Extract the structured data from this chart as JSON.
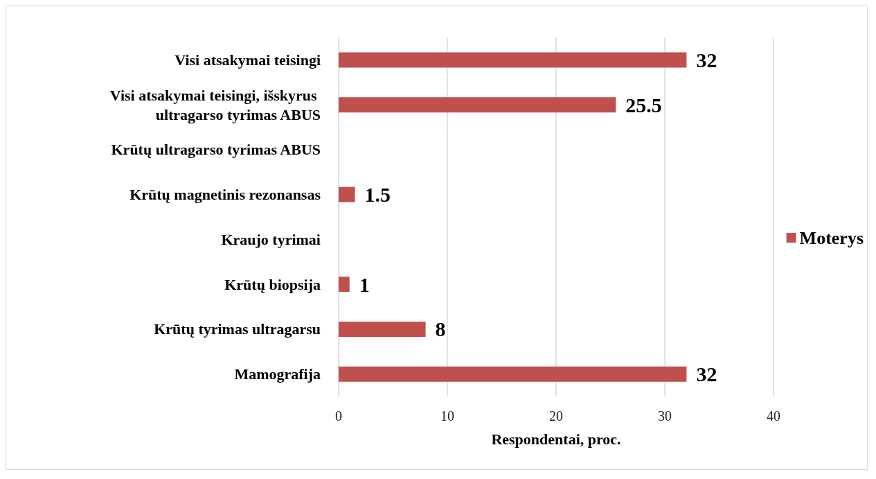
{
  "chart_data": {
    "type": "bar",
    "orientation": "horizontal",
    "xlabel": "Respondentai, proc.",
    "categories": [
      "Visi atsakymai teisingi",
      "Visi atsakymai teisingi, išskyrus ultragarso tyrimas ABUS",
      "Krūtų ultragarso tyrimas ABUS",
      "Krūtų magnetinis rezonansas",
      "Kraujo tyrimai",
      "Krūtų biopsija",
      "Krūtų tyrimas ultragarsu",
      "Mamografija"
    ],
    "series": [
      {
        "name": "Moterys",
        "color": "#c0504d",
        "values": [
          32,
          25.5,
          null,
          1.5,
          null,
          1,
          8,
          32
        ]
      }
    ],
    "xlim": [
      0,
      40
    ],
    "xticks": [
      0,
      10,
      20,
      30,
      40
    ],
    "grid": "x",
    "legend": "right",
    "data_labels": true
  }
}
